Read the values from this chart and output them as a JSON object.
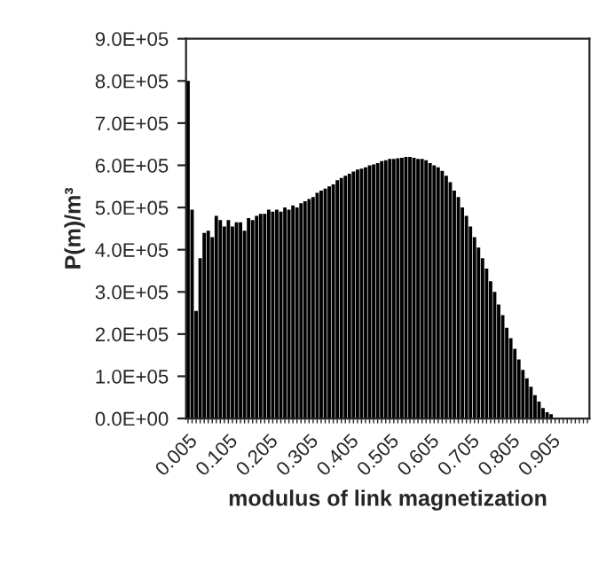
{
  "chart_data": {
    "type": "bar",
    "xlabel": "modulus of link magnetization",
    "ylabel": "P(m)/m³",
    "categories": [
      "0.005",
      null,
      null,
      null,
      null,
      null,
      null,
      null,
      null,
      null,
      "0.105",
      null,
      null,
      null,
      null,
      null,
      null,
      null,
      null,
      null,
      "0.205",
      null,
      null,
      null,
      null,
      null,
      null,
      null,
      null,
      null,
      "0.305",
      null,
      null,
      null,
      null,
      null,
      null,
      null,
      null,
      null,
      "0.405",
      null,
      null,
      null,
      null,
      null,
      null,
      null,
      null,
      null,
      "0.505",
      null,
      null,
      null,
      null,
      null,
      null,
      null,
      null,
      null,
      "0.605",
      null,
      null,
      null,
      null,
      null,
      null,
      null,
      null,
      null,
      "0.705",
      null,
      null,
      null,
      null,
      null,
      null,
      null,
      null,
      null,
      "0.805",
      null,
      null,
      null,
      null,
      null,
      null,
      null,
      null,
      null,
      "0.905",
      null,
      null,
      null,
      null,
      null,
      null,
      null,
      null,
      null
    ],
    "values": [
      800000,
      495000,
      255000,
      380000,
      440000,
      445000,
      430000,
      480000,
      470000,
      455000,
      470000,
      455000,
      465000,
      465000,
      445000,
      475000,
      470000,
      480000,
      485000,
      485000,
      495000,
      490000,
      495000,
      490000,
      500000,
      495000,
      505000,
      500000,
      510000,
      515000,
      520000,
      525000,
      535000,
      540000,
      545000,
      550000,
      555000,
      565000,
      570000,
      575000,
      580000,
      585000,
      590000,
      592000,
      595000,
      600000,
      602000,
      605000,
      610000,
      612000,
      615000,
      615000,
      617000,
      618000,
      620000,
      620000,
      618000,
      615000,
      615000,
      612000,
      605000,
      600000,
      595000,
      587000,
      575000,
      560000,
      540000,
      525000,
      500000,
      480000,
      455000,
      430000,
      405000,
      380000,
      355000,
      325000,
      300000,
      270000,
      245000,
      215000,
      190000,
      165000,
      140000,
      115000,
      95000,
      75000,
      55000,
      40000,
      25000,
      15000,
      10000,
      0,
      0,
      0,
      0,
      0,
      0,
      0,
      0,
      0
    ],
    "color": "#000000",
    "ylim": [
      0,
      900000
    ],
    "yticks": [
      {
        "value": 0,
        "label": "0.0E+00"
      },
      {
        "value": 100000,
        "label": "1.0E+05"
      },
      {
        "value": 200000,
        "label": "2.0E+05"
      },
      {
        "value": 300000,
        "label": "3.0E+05"
      },
      {
        "value": 400000,
        "label": "4.0E+05"
      },
      {
        "value": 500000,
        "label": "5.0E+05"
      },
      {
        "value": 600000,
        "label": "6.0E+05"
      },
      {
        "value": 700000,
        "label": "7.0E+05"
      },
      {
        "value": 800000,
        "label": "8.0E+05"
      },
      {
        "value": 900000,
        "label": "9.0E+05"
      }
    ],
    "grid": false,
    "legend": false
  }
}
